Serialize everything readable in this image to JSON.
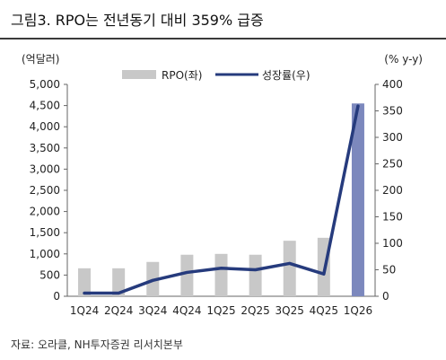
{
  "title": "그림3. RPO는 전년동기 대비 359% 급증",
  "source": "자료: 오라클, NH투자증권 리서치본부",
  "chart_data": {
    "type": "bar",
    "categories": [
      "1Q24",
      "2Q24",
      "3Q24",
      "4Q24",
      "1Q25",
      "2Q25",
      "3Q25",
      "4Q25",
      "1Q26"
    ],
    "series": [
      {
        "name": "RPO(좌)",
        "type": "bar",
        "axis": "left",
        "values": [
          660,
          660,
          810,
          980,
          1000,
          980,
          1310,
          1380,
          4550
        ]
      },
      {
        "name": "성장률(우)",
        "type": "line",
        "axis": "right",
        "values": [
          6,
          6,
          30,
          45,
          53,
          50,
          62,
          42,
          359
        ]
      }
    ],
    "left_axis": {
      "label": "(억달러)",
      "min": 0,
      "max": 5000,
      "step": 500,
      "ticks": [
        "0",
        "500",
        "1,000",
        "1,500",
        "2,000",
        "2,500",
        "3,000",
        "3,500",
        "4,000",
        "4,500",
        "5,000"
      ]
    },
    "right_axis": {
      "label": "(% y-y)",
      "min": 0,
      "max": 400,
      "step": 50,
      "ticks": [
        "0",
        "50",
        "100",
        "150",
        "200",
        "250",
        "300",
        "350",
        "400"
      ]
    },
    "legend_position": "top-center",
    "grid": false,
    "colors": {
      "bar": "#c8c8c8",
      "bar_highlight": "#7c88bd",
      "line": "#263b7d"
    }
  }
}
